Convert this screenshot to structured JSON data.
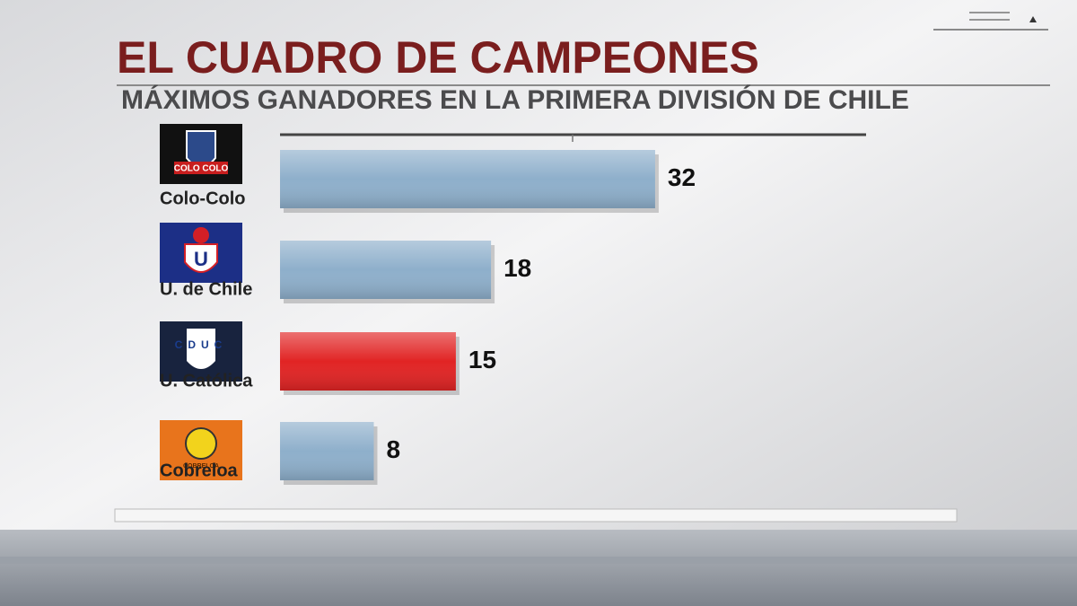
{
  "chart_data": {
    "type": "bar",
    "orientation": "horizontal",
    "title": "EL CUADRO DE CAMPEONES",
    "subtitle": "MÁXIMOS GANADORES EN LA PRIMERA DIVISIÓN DE CHILE",
    "categories": [
      "Colo-Colo",
      "U. de Chile",
      "U. Católica",
      "Cobreloa"
    ],
    "logo_texts": [
      "COLO COLO",
      "U",
      "CDUC",
      "COBRELOA"
    ],
    "values": [
      32,
      18,
      15,
      8
    ],
    "colors": [
      "#8eafcb",
      "#8eafcb",
      "#e12424",
      "#8eafcb"
    ],
    "xlim": [
      0,
      50
    ]
  }
}
